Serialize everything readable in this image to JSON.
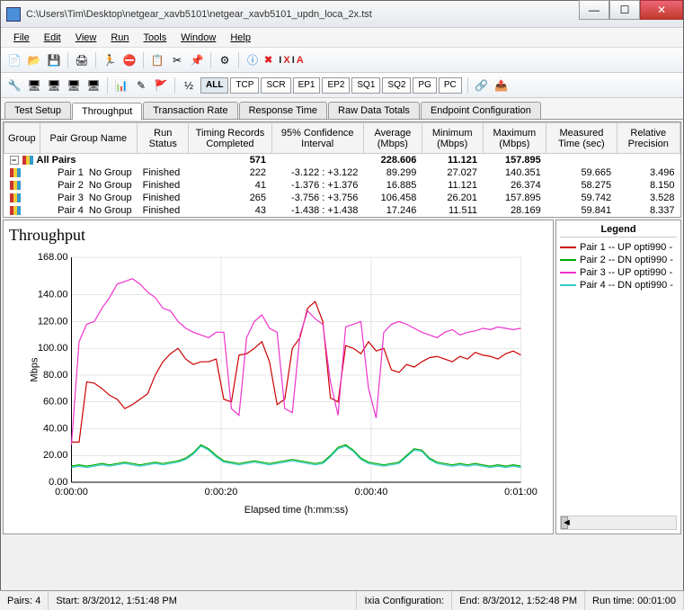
{
  "window": {
    "title": "C:\\Users\\Tim\\Desktop\\netgear_xavb5101\\netgear_xavb5101_updn_loca_2x.tst"
  },
  "menu": [
    "File",
    "Edit",
    "View",
    "Run",
    "Tools",
    "Window",
    "Help"
  ],
  "logo_text": "IXIA",
  "filter_buttons": [
    "ALL",
    "TCP",
    "SCR",
    "EP1",
    "EP2",
    "SQ1",
    "SQ2",
    "PG",
    "PC"
  ],
  "tabs": [
    "Test Setup",
    "Throughput",
    "Transaction Rate",
    "Response Time",
    "Raw Data Totals",
    "Endpoint Configuration"
  ],
  "active_tab": 1,
  "table": {
    "columns": [
      "Group",
      "Pair Group Name",
      "Run Status",
      "Timing Records Completed",
      "95% Confidence Interval",
      "Average (Mbps)",
      "Minimum (Mbps)",
      "Maximum (Mbps)",
      "Measured Time (sec)",
      "Relative Precision"
    ],
    "summary": {
      "label": "All Pairs",
      "timing": "571",
      "avg": "228.606",
      "min": "11.121",
      "max": "157.895"
    },
    "rows": [
      {
        "pair": "Pair 1",
        "group": "No Group",
        "status": "Finished",
        "timing": "222",
        "conf": "-3.122 : +3.122",
        "avg": "89.299",
        "min": "27.027",
        "max": "140.351",
        "time": "59.665",
        "prec": "3.496"
      },
      {
        "pair": "Pair 2",
        "group": "No Group",
        "status": "Finished",
        "timing": "41",
        "conf": "-1.376 : +1.376",
        "avg": "16.885",
        "min": "11.121",
        "max": "26.374",
        "time": "58.275",
        "prec": "8.150"
      },
      {
        "pair": "Pair 3",
        "group": "No Group",
        "status": "Finished",
        "timing": "265",
        "conf": "-3.756 : +3.756",
        "avg": "106.458",
        "min": "26.201",
        "max": "157.895",
        "time": "59.742",
        "prec": "3.528"
      },
      {
        "pair": "Pair 4",
        "group": "No Group",
        "status": "Finished",
        "timing": "43",
        "conf": "-1.438 : +1.438",
        "avg": "17.246",
        "min": "11.511",
        "max": "28.169",
        "time": "59.841",
        "prec": "8.337"
      }
    ]
  },
  "chart": {
    "title": "Throughput",
    "type": "line",
    "ylabel": "Mbps",
    "xlabel": "Elapsed time (h:mm:ss)",
    "ylim": [
      0,
      168
    ],
    "yticks": [
      0,
      20,
      40,
      60,
      80,
      100,
      120,
      140,
      168
    ],
    "ytick_labels": [
      "0.00",
      "20.00",
      "40.00",
      "60.00",
      "80.00",
      "100.00",
      "120.00",
      "140.00",
      "168.00"
    ],
    "xticks": [
      0,
      0.333,
      0.667,
      1.0
    ],
    "xtick_labels": [
      "0:00:00",
      "0:00:20",
      "0:00:40",
      "0:01:00"
    ],
    "background_color": "#ffffff",
    "grid_color": "#cccccc",
    "title_fontsize": 18,
    "label_fontsize": 11,
    "series": [
      {
        "name": "Pair 1 -- UP opti990 -",
        "color": "#cc0000",
        "data": [
          30,
          30,
          75,
          74,
          70,
          65,
          62,
          55,
          58,
          62,
          66,
          80,
          90,
          96,
          100,
          92,
          88,
          90,
          90,
          92,
          62,
          60,
          95,
          96,
          100,
          105,
          90,
          58,
          62,
          100,
          108,
          130,
          135,
          120,
          63,
          60,
          102,
          100,
          96,
          105,
          98,
          100,
          84,
          82,
          88,
          86,
          90,
          93,
          94,
          92,
          90,
          94,
          92,
          97,
          95,
          94,
          92,
          96,
          98,
          95
        ]
      },
      {
        "name": "Pair 2 -- DN  opti990 -",
        "color": "#00aa00",
        "data": [
          12,
          13,
          12,
          13,
          14,
          13,
          14,
          15,
          14,
          13,
          14,
          15,
          14,
          15,
          16,
          18,
          22,
          28,
          25,
          20,
          16,
          15,
          14,
          15,
          16,
          15,
          14,
          15,
          16,
          17,
          16,
          15,
          14,
          15,
          20,
          26,
          28,
          24,
          18,
          15,
          14,
          13,
          14,
          15,
          20,
          25,
          24,
          18,
          15,
          14,
          13,
          14,
          13,
          14,
          13,
          12,
          13,
          12,
          13,
          12
        ]
      },
      {
        "name": "Pair 3 -- UP opti990 -",
        "color": "#ee33cc",
        "data": [
          28,
          105,
          118,
          120,
          130,
          138,
          148,
          150,
          152,
          148,
          142,
          138,
          130,
          128,
          120,
          115,
          112,
          110,
          108,
          112,
          112,
          55,
          50,
          108,
          120,
          125,
          115,
          112,
          55,
          52,
          110,
          128,
          122,
          118,
          75,
          50,
          116,
          118,
          120,
          70,
          48,
          112,
          118,
          120,
          118,
          115,
          112,
          110,
          108,
          112,
          114,
          110,
          112,
          113,
          115,
          114,
          116,
          115,
          114,
          115
        ]
      },
      {
        "name": "Pair 4 -- DN  opti990 -",
        "color": "#33cccc",
        "data": [
          11,
          12,
          11,
          12,
          13,
          12,
          13,
          14,
          13,
          12,
          13,
          14,
          13,
          14,
          15,
          17,
          21,
          27,
          24,
          19,
          15,
          14,
          13,
          14,
          15,
          14,
          13,
          14,
          15,
          16,
          15,
          14,
          13,
          14,
          19,
          25,
          27,
          23,
          17,
          14,
          13,
          12,
          13,
          14,
          19,
          24,
          23,
          17,
          14,
          13,
          12,
          13,
          12,
          13,
          12,
          11,
          12,
          11,
          12,
          11
        ]
      }
    ]
  },
  "legend_title": "Legend",
  "status": {
    "pairs_label": "Pairs:",
    "pairs": "4",
    "start_label": "Start:",
    "start": "8/3/2012, 1:51:48 PM",
    "config_label": "Ixia Configuration:",
    "end_label": "End:",
    "end": "8/3/2012, 1:52:48 PM",
    "runtime_label": "Run time:",
    "runtime": "00:01:00"
  }
}
